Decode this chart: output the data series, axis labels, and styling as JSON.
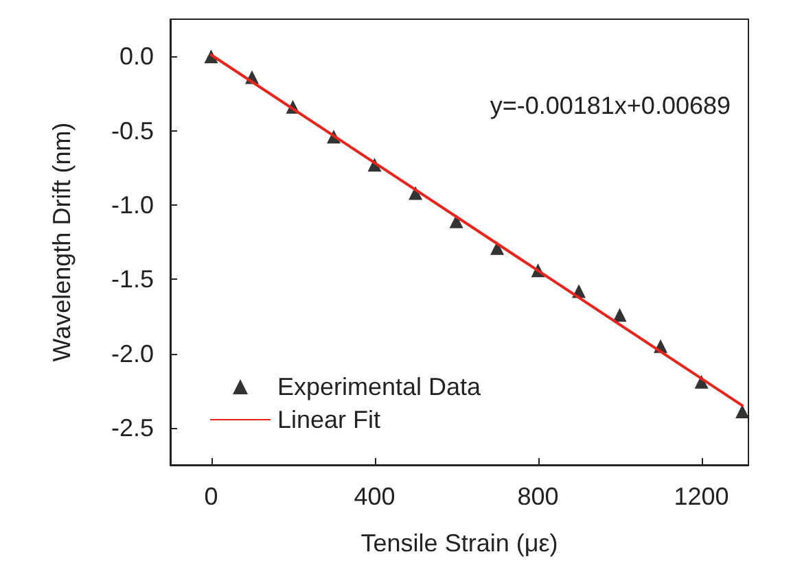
{
  "chart_data": {
    "type": "scatter",
    "xlabel": "Tensile Strain (με)",
    "ylabel": "Wavelength Drift (nm)",
    "xlim": [
      -100,
      1315
    ],
    "xticks": [
      0,
      400,
      800,
      1200
    ],
    "ylim": [
      -2.75,
      0.25
    ],
    "yticks": [
      {
        "value": 0,
        "label": "0.0"
      },
      -0.5,
      {
        "value": -1,
        "label": "-1.0"
      },
      -1.5,
      {
        "value": -2,
        "label": "-2.0"
      },
      -2.5
    ],
    "grid": false,
    "legend": "bottom left",
    "annotations": [
      "y=-0.00181x+0.00689"
    ],
    "series": [
      {
        "name": "Experimental Data",
        "marker": "triangle",
        "color": "#000000",
        "x": [
          0,
          100,
          200,
          300,
          400,
          500,
          600,
          700,
          800,
          900,
          1000,
          1100,
          1200,
          1300
        ],
        "values": [
          0,
          -0.14,
          -0.34,
          -0.54,
          -0.73,
          -0.92,
          -1.11,
          -1.29,
          -1.44,
          -1.58,
          -1.74,
          -1.95,
          -2.19,
          -2.39
        ]
      },
      {
        "name": "Linear Fit",
        "type": "line",
        "color": "#e8251c",
        "line_style": "solid",
        "x": [
          0,
          1300
        ],
        "values": [
          0.01,
          -2.35
        ]
      }
    ]
  }
}
